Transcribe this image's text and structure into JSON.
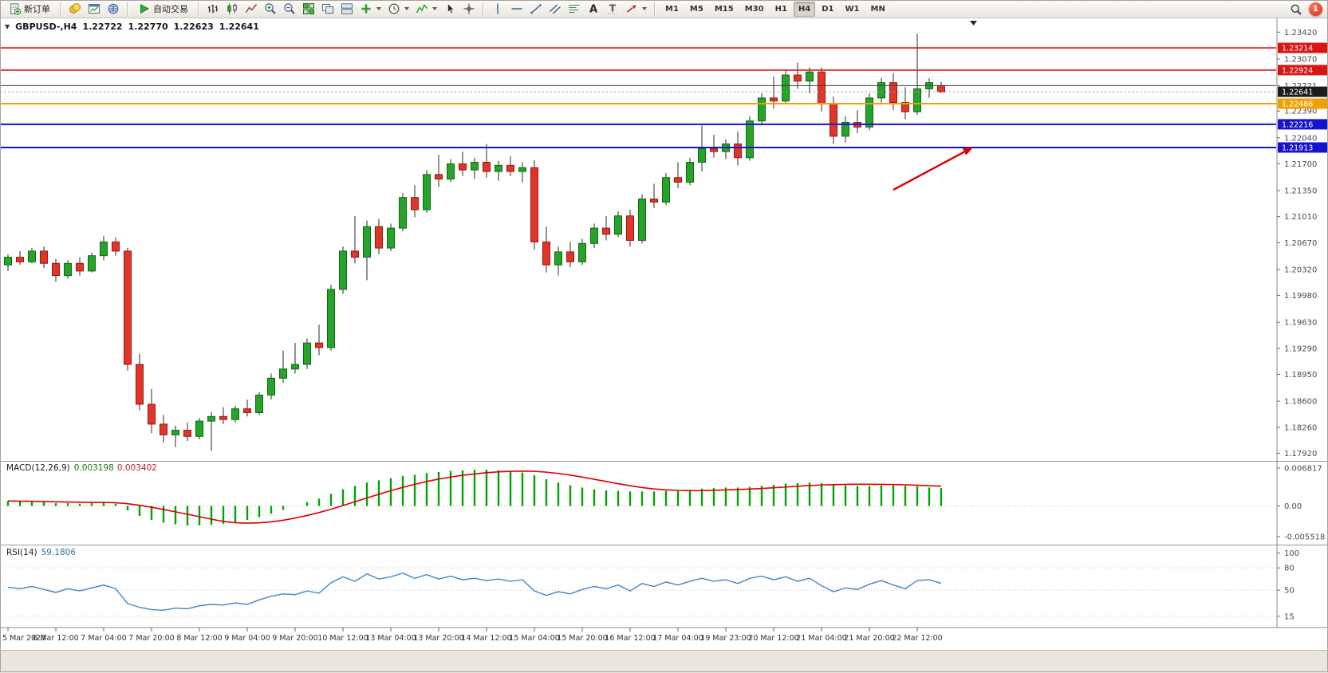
{
  "toolbar": {
    "new_order_label": "新订单",
    "auto_trading_label": "自动交易",
    "icon_buttons": [
      {
        "name": "chart-profiles",
        "key": "gold"
      },
      {
        "name": "market-watch",
        "key": "panel"
      },
      {
        "name": "community",
        "key": "globe"
      }
    ],
    "chart_tool_buttons": [
      {
        "name": "ohlc-bars",
        "key": "bars"
      },
      {
        "name": "candlesticks",
        "key": "candles"
      },
      {
        "name": "line-chart",
        "key": "zigzag"
      },
      {
        "name": "zoom-in",
        "key": "zoomin"
      },
      {
        "name": "zoom-out",
        "key": "zoomout"
      },
      {
        "name": "tile-windows",
        "key": "tile"
      },
      {
        "name": "cascade-windows",
        "key": "cascade"
      },
      {
        "name": "arrange-windows",
        "key": "arrange"
      },
      {
        "name": "new-chart",
        "key": "plusdrop",
        "dropdown": true
      },
      {
        "name": "periods",
        "key": "clock",
        "dropdown": true
      },
      {
        "name": "indicators",
        "key": "indicator",
        "dropdown": true
      },
      {
        "name": "cursor",
        "key": "cursor"
      },
      {
        "name": "crosshair",
        "key": "crosshair"
      }
    ],
    "draw_tool_buttons": [
      {
        "name": "vertical-line",
        "key": "vline"
      },
      {
        "name": "horizontal-line",
        "key": "hline"
      },
      {
        "name": "trendline",
        "key": "tline"
      },
      {
        "name": "equidistant-channel",
        "key": "channel"
      },
      {
        "name": "fibonacci",
        "key": "fibo"
      },
      {
        "name": "text",
        "key": "textA"
      },
      {
        "name": "label",
        "key": "labelT"
      },
      {
        "name": "arrows",
        "key": "arrows",
        "dropdown": true
      }
    ],
    "timeframes": [
      "M1",
      "M5",
      "M15",
      "M30",
      "H1",
      "H4",
      "D1",
      "W1",
      "MN"
    ],
    "active_timeframe": "H4",
    "notification_count": "1"
  },
  "chart": {
    "header": {
      "symbol": "GBPUSD-,H4",
      "open": "1.22722",
      "high": "1.22770",
      "low": "1.22623",
      "close": "1.22641"
    },
    "price_axis_labels": [
      "1.23420",
      "1.23070",
      "1.22721",
      "1.22390",
      "1.22040",
      "1.21700",
      "1.21350",
      "1.21010",
      "1.20670",
      "1.20320",
      "1.19980",
      "1.19630",
      "1.19290",
      "1.18950",
      "1.18600",
      "1.18260",
      "1.17920"
    ],
    "price_tags": [
      {
        "text": "1.23214",
        "price": 1.23214,
        "color": "#dc1414",
        "name": "price-level-tag"
      },
      {
        "text": "1.22924",
        "price": 1.22924,
        "color": "#dc1414",
        "name": "price-level-tag"
      },
      {
        "text": "1.22641",
        "price": 1.22641,
        "color": "#1c1c1c",
        "name": "current-price-tag"
      },
      {
        "text": "1.22486",
        "price": 1.22486,
        "color": "#efa005",
        "name": "price-level-tag"
      },
      {
        "text": "1.22216",
        "price": 1.22216,
        "color": "#1414cd",
        "name": "price-level-tag"
      },
      {
        "text": "1.21913",
        "price": 1.21913,
        "color": "#1414cd",
        "name": "price-level-tag"
      }
    ],
    "levels": [
      {
        "price": 1.23214,
        "color": "#dc1414",
        "width": 1.6,
        "style": "solid",
        "name": "resistance-line-1"
      },
      {
        "price": 1.22924,
        "color": "#dc1414",
        "width": 1.6,
        "style": "solid",
        "name": "resistance-line-2"
      },
      {
        "price": 1.22721,
        "color": "#3c3c3c",
        "width": 1,
        "style": "solid",
        "name": "black-resistance-line"
      },
      {
        "price": 1.22641,
        "color": "#999999",
        "width": 1,
        "style": "dotted",
        "name": "bid-price-line"
      },
      {
        "price": 1.22486,
        "color": "#efa005",
        "width": 2,
        "style": "solid",
        "name": "orange-level-line"
      },
      {
        "price": 1.22216,
        "color": "#1414cd",
        "width": 2,
        "style": "solid",
        "name": "support-line-1"
      },
      {
        "price": 1.21913,
        "color": "#1414cd",
        "width": 2,
        "style": "solid",
        "name": "support-line-2"
      }
    ],
    "time_labels": [
      "5 Mar 2023",
      "6 Mar 12:00",
      "7 Mar 04:00",
      "7 Mar 20:00",
      "8 Mar 12:00",
      "9 Mar 04:00",
      "9 Mar 20:00",
      "10 Mar 12:00",
      "13 Mar 04:00",
      "13 Mar 20:00",
      "14 Mar 12:00",
      "15 Mar 04:00",
      "15 Mar 20:00",
      "16 Mar 12:00",
      "17 Mar 04:00",
      "19 Mar 23:00",
      "20 Mar 12:00",
      "21 Mar 04:00",
      "21 Mar 20:00",
      "22 Mar 12:00"
    ],
    "time_label_step": 4,
    "arrow": {
      "from_index": 74,
      "from_price": 1.2136,
      "to_index": 80.7,
      "to_price": 1.2192,
      "color": "#dd0000"
    },
    "colors": {
      "up": "#27a22b",
      "up_stroke": "#0b6c10",
      "down": "#e0352b",
      "down_stroke": "#9c1710",
      "wick": "#2a2a2a"
    }
  },
  "chart_data": [
    {
      "type": "candlestick",
      "name": "GBPUSD H4",
      "ylim": [
        1.1782,
        1.236
      ],
      "ohlc": [
        [
          1.2038,
          1.2052,
          1.203,
          1.2048
        ],
        [
          1.2048,
          1.2056,
          1.2038,
          1.2042
        ],
        [
          1.2042,
          1.206,
          1.204,
          1.2056
        ],
        [
          1.2056,
          1.2062,
          1.2034,
          1.204
        ],
        [
          1.204,
          1.2046,
          1.2016,
          1.2024
        ],
        [
          1.2024,
          1.2044,
          1.202,
          1.204
        ],
        [
          1.204,
          1.2048,
          1.2024,
          1.203
        ],
        [
          1.203,
          1.2054,
          1.2028,
          1.205
        ],
        [
          1.205,
          1.2076,
          1.2044,
          1.2068
        ],
        [
          1.2068,
          1.2074,
          1.205,
          1.2056
        ],
        [
          1.2056,
          1.206,
          1.19,
          1.1908
        ],
        [
          1.1908,
          1.1922,
          1.1848,
          1.1856
        ],
        [
          1.1856,
          1.1876,
          1.1818,
          1.183
        ],
        [
          1.183,
          1.1842,
          1.1806,
          1.1816
        ],
        [
          1.1816,
          1.1828,
          1.18,
          1.1822
        ],
        [
          1.1822,
          1.1832,
          1.1808,
          1.1814
        ],
        [
          1.1814,
          1.1838,
          1.181,
          1.1834
        ],
        [
          1.1834,
          1.1846,
          1.1795,
          1.184
        ],
        [
          1.184,
          1.1852,
          1.183,
          1.1836
        ],
        [
          1.1836,
          1.1854,
          1.1832,
          1.185
        ],
        [
          1.185,
          1.1862,
          1.184,
          1.1845
        ],
        [
          1.1845,
          1.1872,
          1.1842,
          1.1868
        ],
        [
          1.1868,
          1.1896,
          1.1862,
          1.189
        ],
        [
          1.189,
          1.1926,
          1.1884,
          1.1902
        ],
        [
          1.1902,
          1.1936,
          1.1896,
          1.1908
        ],
        [
          1.1908,
          1.1942,
          1.1902,
          1.1936
        ],
        [
          1.1936,
          1.196,
          1.192,
          1.193
        ],
        [
          1.193,
          1.2012,
          1.1926,
          1.2006
        ],
        [
          1.2006,
          1.2062,
          1.2,
          1.2056
        ],
        [
          1.2056,
          1.2102,
          1.204,
          1.2048
        ],
        [
          1.2048,
          1.2096,
          1.2018,
          1.2088
        ],
        [
          1.2088,
          1.2098,
          1.2052,
          1.206
        ],
        [
          1.206,
          1.2092,
          1.2056,
          1.2086
        ],
        [
          1.2086,
          1.2132,
          1.2082,
          1.2126
        ],
        [
          1.2126,
          1.2142,
          1.21,
          1.211
        ],
        [
          1.211,
          1.2162,
          1.2106,
          1.2156
        ],
        [
          1.2156,
          1.2182,
          1.214,
          1.215
        ],
        [
          1.215,
          1.2176,
          1.2146,
          1.217
        ],
        [
          1.217,
          1.2186,
          1.2154,
          1.2162
        ],
        [
          1.2162,
          1.2178,
          1.215,
          1.2172
        ],
        [
          1.2172,
          1.2196,
          1.2152,
          1.216
        ],
        [
          1.216,
          1.2174,
          1.2148,
          1.2168
        ],
        [
          1.2168,
          1.218,
          1.2154,
          1.216
        ],
        [
          1.216,
          1.2172,
          1.2146,
          1.2165
        ],
        [
          1.2165,
          1.2175,
          1.2058,
          1.2068
        ],
        [
          1.2068,
          1.2088,
          1.2028,
          1.2038
        ],
        [
          1.2038,
          1.2062,
          1.2024,
          1.2055
        ],
        [
          1.2055,
          1.2068,
          1.2035,
          1.2042
        ],
        [
          1.2042,
          1.2072,
          1.2038,
          1.2066
        ],
        [
          1.2066,
          1.2092,
          1.206,
          1.2086
        ],
        [
          1.2086,
          1.2102,
          1.207,
          1.2078
        ],
        [
          1.2078,
          1.2108,
          1.2074,
          1.2102
        ],
        [
          1.2102,
          1.211,
          1.2062,
          1.207
        ],
        [
          1.207,
          1.213,
          1.2066,
          1.2124
        ],
        [
          1.2124,
          1.2144,
          1.2112,
          1.212
        ],
        [
          1.212,
          1.2158,
          1.2116,
          1.2152
        ],
        [
          1.2152,
          1.2172,
          1.2138,
          1.2146
        ],
        [
          1.2146,
          1.2178,
          1.2142,
          1.2172
        ],
        [
          1.2172,
          1.222,
          1.216,
          1.219
        ],
        [
          1.219,
          1.2208,
          1.2178,
          1.2186
        ],
        [
          1.2186,
          1.2202,
          1.2176,
          1.2196
        ],
        [
          1.2196,
          1.2212,
          1.2168,
          1.2178
        ],
        [
          1.2178,
          1.2232,
          1.2174,
          1.2226
        ],
        [
          1.2226,
          1.2262,
          1.222,
          1.2256
        ],
        [
          1.2256,
          1.2284,
          1.2242,
          1.2252
        ],
        [
          1.2252,
          1.2292,
          1.2248,
          1.2286
        ],
        [
          1.2286,
          1.2302,
          1.2268,
          1.2278
        ],
        [
          1.2278,
          1.2296,
          1.2262,
          1.229
        ],
        [
          1.229,
          1.2296,
          1.2238,
          1.2248
        ],
        [
          1.2248,
          1.2258,
          1.2196,
          1.2206
        ],
        [
          1.2206,
          1.2232,
          1.2198,
          1.2224
        ],
        [
          1.2224,
          1.224,
          1.221,
          1.2218
        ],
        [
          1.2218,
          1.2262,
          1.2214,
          1.2256
        ],
        [
          1.2256,
          1.2282,
          1.225,
          1.2276
        ],
        [
          1.2276,
          1.2288,
          1.224,
          1.225
        ],
        [
          1.225,
          1.227,
          1.2228,
          1.2238
        ],
        [
          1.2238,
          1.234,
          1.2234,
          1.2268
        ],
        [
          1.2268,
          1.2282,
          1.2256,
          1.2276
        ],
        [
          1.22722,
          1.2277,
          1.22623,
          1.22641
        ]
      ]
    },
    {
      "type": "bar",
      "name": "MACD",
      "label": "MACD(12,26,9)",
      "value_main": "0.003198",
      "value_signal": "0.003402",
      "ylim": [
        -0.0068,
        0.0078
      ],
      "axis": [
        {
          "t": "0.006817",
          "v": 0.006817
        },
        {
          "t": "0.00",
          "v": 0
        },
        {
          "t": "-0.005518",
          "v": -0.005518
        }
      ],
      "signal_period": 9,
      "colors": {
        "histogram": "#00a400",
        "signal": "#e00000"
      },
      "histogram": [
        0.0009,
        0.0008,
        0.0008,
        0.0007,
        0.0005,
        0.0005,
        0.0004,
        0.0005,
        0.0006,
        0.0004,
        -0.0008,
        -0.0018,
        -0.0025,
        -0.003,
        -0.0033,
        -0.0035,
        -0.0035,
        -0.0034,
        -0.0032,
        -0.0029,
        -0.0025,
        -0.002,
        -0.0014,
        -0.0007,
        0.0,
        0.0007,
        0.0013,
        0.0022,
        0.003,
        0.0036,
        0.0042,
        0.0046,
        0.005,
        0.0054,
        0.0056,
        0.0059,
        0.0061,
        0.0063,
        0.0064,
        0.0065,
        0.0065,
        0.0064,
        0.0062,
        0.006,
        0.0055,
        0.0048,
        0.0042,
        0.0037,
        0.0033,
        0.003,
        0.0028,
        0.0027,
        0.0026,
        0.0026,
        0.0026,
        0.0027,
        0.0028,
        0.0029,
        0.0031,
        0.0032,
        0.0033,
        0.0033,
        0.0034,
        0.0036,
        0.0038,
        0.004,
        0.0041,
        0.0042,
        0.0041,
        0.0039,
        0.0037,
        0.0036,
        0.0036,
        0.0037,
        0.0037,
        0.0036,
        0.0035,
        0.0033,
        0.0032
      ]
    },
    {
      "type": "line",
      "name": "RSI",
      "label": "RSI(14)",
      "value": "59.1806",
      "ylim": [
        3,
        107
      ],
      "axis": [
        {
          "t": "100",
          "v": 100
        },
        {
          "t": "80",
          "v": 80
        },
        {
          "t": "50",
          "v": 50
        },
        {
          "t": "15",
          "v": 15
        }
      ],
      "levels": [
        80,
        50,
        15
      ],
      "color": "#3f87c8",
      "values": [
        54,
        52,
        55,
        51,
        47,
        52,
        49,
        53,
        57,
        52,
        32,
        27,
        24,
        23,
        26,
        25,
        29,
        31,
        30,
        33,
        31,
        37,
        42,
        45,
        44,
        49,
        46,
        60,
        68,
        62,
        72,
        65,
        68,
        73,
        66,
        71,
        65,
        69,
        64,
        66,
        63,
        65,
        62,
        64,
        49,
        43,
        48,
        45,
        51,
        55,
        52,
        57,
        49,
        59,
        55,
        61,
        57,
        62,
        66,
        62,
        64,
        59,
        66,
        69,
        64,
        68,
        62,
        66,
        56,
        48,
        53,
        51,
        58,
        63,
        57,
        52,
        63,
        64,
        59.18
      ]
    }
  ]
}
